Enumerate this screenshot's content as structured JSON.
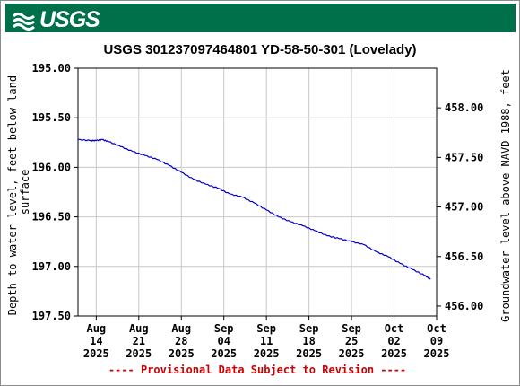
{
  "logo": {
    "text": "USGS"
  },
  "chart_data": {
    "type": "line",
    "title": "USGS 301237097464801 YD-58-50-301 (Lovelady)",
    "ylabel_left": "Depth to water level, feet below land surface",
    "ylabel_left_lines": [
      "Depth to water level, feet below land",
      "surface"
    ],
    "ylabel_right": "Groundwater level above NAVD 1988, feet",
    "footer": "---- Provisional Data Subject to Revision ----",
    "ylim_left": [
      195.0,
      197.5
    ],
    "left_axis_inverted": true,
    "ylim_right": [
      458.4,
      455.9
    ],
    "left_ticks": [
      "195.00",
      "195.50",
      "196.00",
      "196.50",
      "197.00",
      "197.50"
    ],
    "right_ticks": [
      "458.00",
      "457.50",
      "457.00",
      "456.50",
      "456.00"
    ],
    "x_ticks": [
      {
        "month": "Aug",
        "day": "14",
        "year": "2025"
      },
      {
        "month": "Aug",
        "day": "21",
        "year": "2025"
      },
      {
        "month": "Aug",
        "day": "28",
        "year": "2025"
      },
      {
        "month": "Sep",
        "day": "04",
        "year": "2025"
      },
      {
        "month": "Sep",
        "day": "11",
        "year": "2025"
      },
      {
        "month": "Sep",
        "day": "18",
        "year": "2025"
      },
      {
        "month": "Sep",
        "day": "25",
        "year": "2025"
      },
      {
        "month": "Oct",
        "day": "02",
        "year": "2025"
      },
      {
        "month": "Oct",
        "day": "09",
        "year": "2025"
      }
    ],
    "xlim": [
      "2025-08-11",
      "2025-10-09"
    ],
    "grid": true,
    "colors": {
      "series": "#0000cc",
      "grid": "#c8c8c8",
      "footer": "#cc0000",
      "banner": "#00704a"
    },
    "series": [
      {
        "x": [
          "2025-08-11",
          "2025-08-13",
          "2025-08-14",
          "2025-08-15",
          "2025-08-16",
          "2025-08-18",
          "2025-08-20",
          "2025-08-22",
          "2025-08-24",
          "2025-08-26",
          "2025-08-28",
          "2025-08-30",
          "2025-09-01",
          "2025-09-03",
          "2025-09-05",
          "2025-09-07",
          "2025-09-09",
          "2025-09-11",
          "2025-09-13",
          "2025-09-15",
          "2025-09-17",
          "2025-09-19",
          "2025-09-21",
          "2025-09-23",
          "2025-09-25",
          "2025-09-27",
          "2025-09-29",
          "2025-10-01",
          "2025-10-03",
          "2025-10-05",
          "2025-10-07",
          "2025-10-08"
        ],
        "y": [
          195.72,
          195.73,
          195.73,
          195.72,
          195.74,
          195.79,
          195.84,
          195.88,
          195.92,
          195.98,
          196.05,
          196.12,
          196.17,
          196.21,
          196.27,
          196.3,
          196.36,
          196.43,
          196.5,
          196.55,
          196.59,
          196.64,
          196.69,
          196.72,
          196.75,
          196.78,
          196.85,
          196.9,
          196.97,
          197.03,
          197.09,
          197.13
        ]
      }
    ]
  }
}
